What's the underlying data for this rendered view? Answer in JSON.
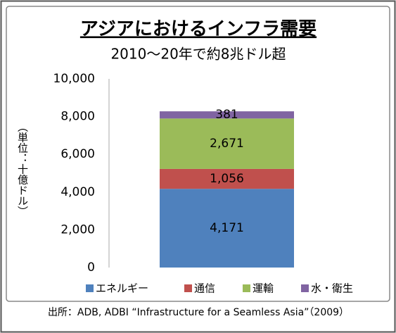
{
  "chart_data": {
    "type": "stacked_bar",
    "title": "アジアにおけるインフラ需要",
    "subtitle": "2010〜20年で約8兆ドル超",
    "y_label": "（単位：十億ドル）",
    "source": "出所：ADB, ADBI “Infrastructure for a Seamless Asia”（2009）",
    "categories": [
      null
    ],
    "series": [
      {
        "name": "エネルギー",
        "color": "#4f81bd",
        "values": [
          4171
        ],
        "value_labels": [
          "4,171"
        ]
      },
      {
        "name": "通信",
        "color": "#c0504d",
        "values": [
          1056
        ],
        "value_labels": [
          "1,056"
        ]
      },
      {
        "name": "運輸",
        "color": "#9bbb59",
        "values": [
          2671
        ],
        "value_labels": [
          "2,671"
        ]
      },
      {
        "name": "水・衛生",
        "color": "#8064a2",
        "values": [
          381
        ],
        "value_labels": [
          "381"
        ]
      }
    ],
    "ylim": [
      0,
      10000
    ],
    "yticks": [
      0,
      {
        "value": 2000,
        "label": "2,000"
      },
      {
        "value": 4000,
        "label": "4,000"
      },
      {
        "value": 6000,
        "label": "6,000"
      },
      {
        "value": 8000,
        "label": "8,000"
      },
      {
        "value": 10000,
        "label": "10,000"
      }
    ],
    "grid": false,
    "legend": "bottom"
  }
}
